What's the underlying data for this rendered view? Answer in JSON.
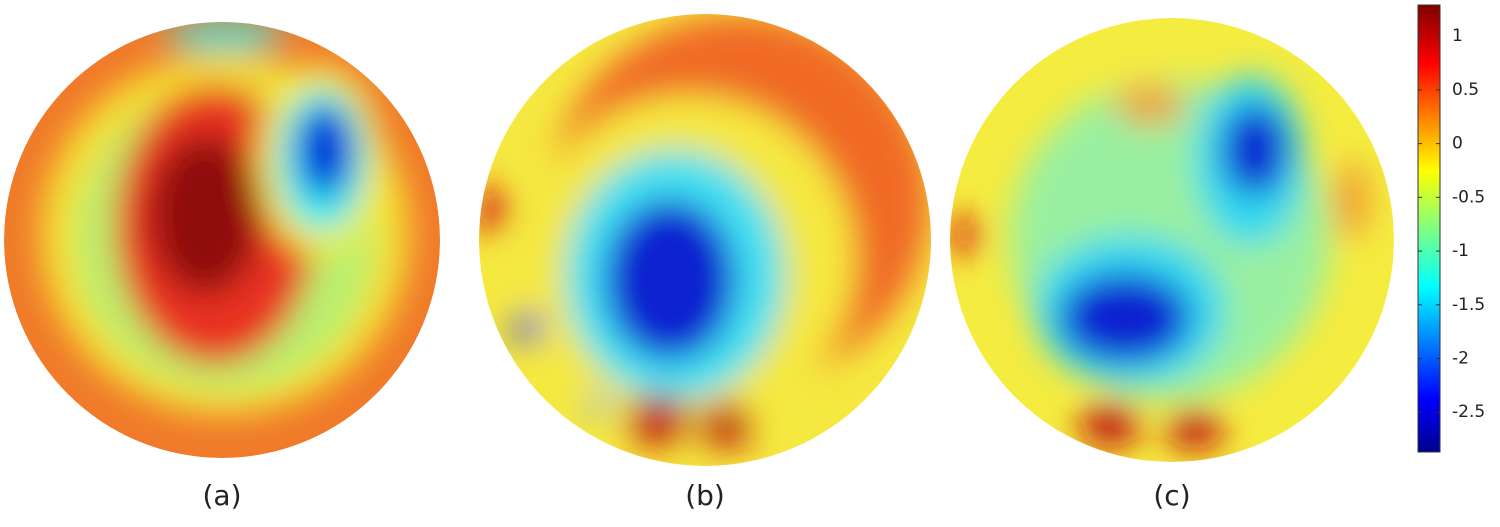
{
  "panels": [
    {
      "label": "(a)"
    },
    {
      "label": "(b)"
    },
    {
      "label": "(c)"
    }
  ],
  "colorbar": {
    "lim": [
      -2.87,
      1.29
    ],
    "ticks": [
      1,
      0.5,
      0,
      -0.5,
      -1,
      -1.5,
      -2,
      -2.5
    ]
  }
}
